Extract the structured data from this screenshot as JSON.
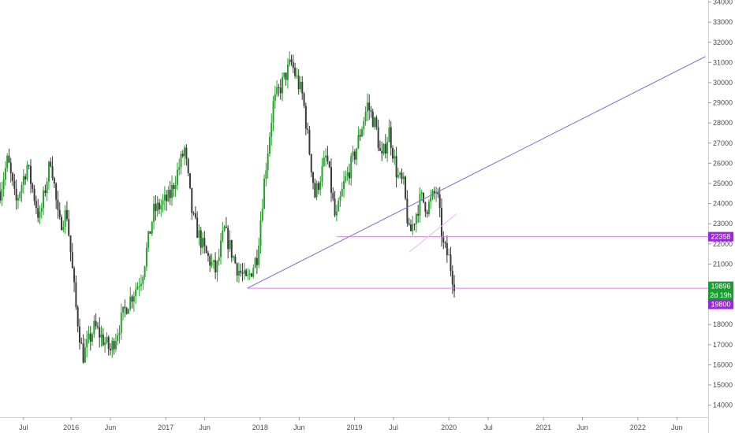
{
  "chart_data": {
    "type": "candlestick",
    "y_axis": {
      "position": "right",
      "range": [
        13400,
        34100
      ],
      "ticks": [
        14000,
        15000,
        16000,
        17000,
        18000,
        19000,
        20000,
        21000,
        22000,
        23000,
        24000,
        25000,
        26000,
        27000,
        28000,
        29000,
        30000,
        31000,
        32000,
        33000,
        34000
      ],
      "tick_labels": [
        "14000",
        "15000",
        "16000",
        "17000",
        "18000",
        "19000",
        "20000",
        "21000",
        "22000",
        "23000",
        "24000",
        "25000",
        "26000",
        "27000",
        "28000",
        "29000",
        "30000",
        "31000",
        "32000",
        "33000",
        "34000"
      ]
    },
    "x_axis": {
      "range": [
        "2015-04-01",
        "2022-09-30"
      ],
      "ticks": [
        "2015-07-01",
        "2016-01-01",
        "2016-06-01",
        "2017-01-01",
        "2017-06-01",
        "2018-01-01",
        "2018-06-01",
        "2019-01-01",
        "2019-06-01",
        "2020-01-01",
        "2020-06-01",
        "2021-01-01",
        "2021-06-01",
        "2022-01-01",
        "2022-06-01"
      ],
      "tick_labels": [
        "Jul",
        "2016",
        "Jun",
        "2017",
        "Jun",
        "2018",
        "Jun",
        "2019",
        "Jul",
        "2020",
        "Jul",
        "2021",
        "Jun",
        "2022",
        "Jun"
      ]
    },
    "grid": false,
    "series_colors": {
      "up": "#26a12b",
      "down": "#3a3a3a"
    },
    "price_path": [
      [
        "2015-04-01",
        24600
      ],
      [
        "2015-05-01",
        26200
      ],
      [
        "2015-06-01",
        24000
      ],
      [
        "2015-07-15",
        25900
      ],
      [
        "2015-09-01",
        23200
      ],
      [
        "2015-10-15",
        26300
      ],
      [
        "2015-11-15",
        22900
      ],
      [
        "2015-12-15",
        23600
      ],
      [
        "2016-01-20",
        18800
      ],
      [
        "2016-02-15",
        16400
      ],
      [
        "2016-04-01",
        17900
      ],
      [
        "2016-06-01",
        16700
      ],
      [
        "2016-08-01",
        18900
      ],
      [
        "2016-10-01",
        20400
      ],
      [
        "2016-11-15",
        23600
      ],
      [
        "2017-01-15",
        24300
      ],
      [
        "2017-03-15",
        26700
      ],
      [
        "2017-04-15",
        23300
      ],
      [
        "2017-06-01",
        21600
      ],
      [
        "2017-07-15",
        20600
      ],
      [
        "2017-08-15",
        22700
      ],
      [
        "2017-10-01",
        20900
      ],
      [
        "2017-11-10",
        20100
      ],
      [
        "2017-12-20",
        21400
      ],
      [
        "2018-01-20",
        25500
      ],
      [
        "2018-02-20",
        28900
      ],
      [
        "2018-03-25",
        29900
      ],
      [
        "2018-05-01",
        31000
      ],
      [
        "2018-06-15",
        29300
      ],
      [
        "2018-08-01",
        24400
      ],
      [
        "2018-09-15",
        26400
      ],
      [
        "2018-10-20",
        23100
      ],
      [
        "2018-11-20",
        24900
      ],
      [
        "2019-01-01",
        26400
      ],
      [
        "2019-02-20",
        28900
      ],
      [
        "2019-03-25",
        27800
      ],
      [
        "2019-04-15",
        26100
      ],
      [
        "2019-05-15",
        27600
      ],
      [
        "2019-06-15",
        25400
      ],
      [
        "2019-07-10",
        24900
      ],
      [
        "2019-08-01",
        22400
      ],
      [
        "2019-09-15",
        24300
      ],
      [
        "2019-10-10",
        23800
      ],
      [
        "2019-11-15",
        24700
      ],
      [
        "2019-12-10",
        21900
      ],
      [
        "2020-01-01",
        21300
      ],
      [
        "2020-01-15",
        20400
      ],
      [
        "2020-01-27",
        19896
      ]
    ],
    "trendlines": [
      {
        "from": [
          "2017-11-12",
          19800
        ],
        "to": [
          "2022-09-20",
          31300
        ],
        "color": "#7b68d8"
      },
      {
        "from": [
          "2018-10-25",
          22358
        ],
        "to": [
          "2022-09-30",
          22358
        ],
        "color": "#d680e2"
      },
      {
        "from": [
          "2017-11-12",
          19800
        ],
        "to": [
          "2022-09-30",
          19800
        ],
        "color": "#d680e2"
      },
      {
        "from": [
          "2019-08-01",
          21600
        ],
        "to": [
          "2020-02-01",
          23500
        ],
        "color": "#e8b9ee"
      }
    ],
    "price_badges": [
      {
        "value": 22358,
        "label": "22358",
        "color": "#9c27d8"
      },
      {
        "value": 19896,
        "label": "19896",
        "color": "#1a9e2f"
      },
      {
        "value": 19450,
        "label": "2d 19h",
        "color": "#1a9e2f"
      },
      {
        "value": 19000,
        "label": "19800",
        "color": "#9c27d8"
      }
    ]
  }
}
